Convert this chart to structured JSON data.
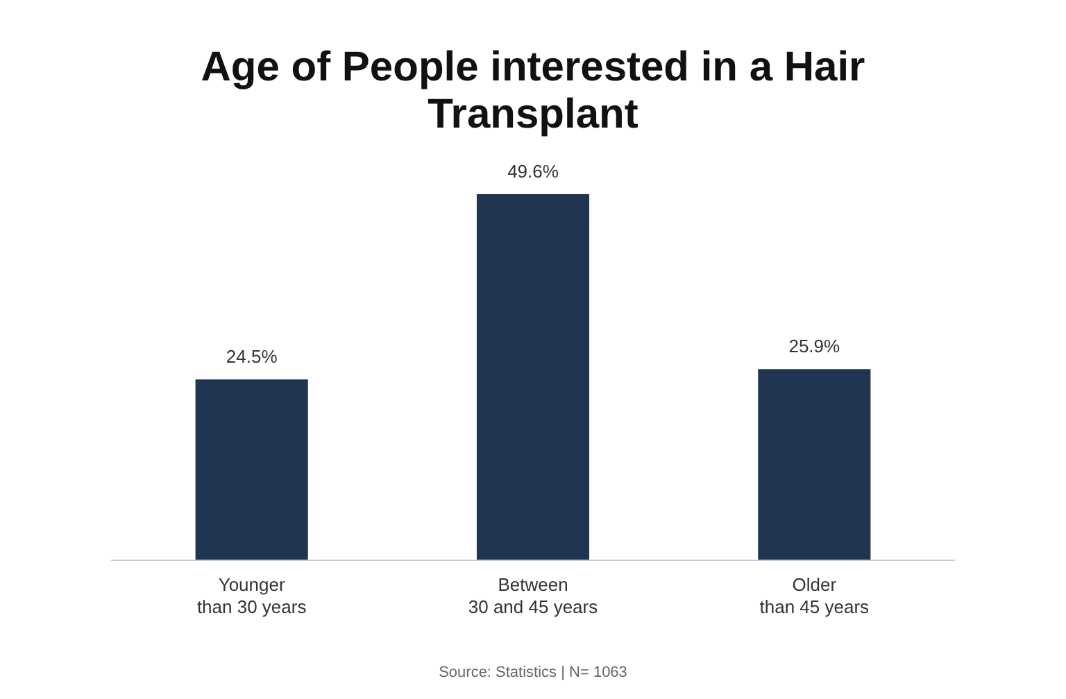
{
  "chart_data": {
    "type": "bar",
    "title": "Age of People interested in a Hair Transplant",
    "categories": [
      "Younger\nthan 30 years",
      "Between\n30 and 45 years",
      "Older\nthan 45 years"
    ],
    "values": [
      24.5,
      49.6,
      25.9
    ],
    "value_labels": [
      "24.5%",
      "49.6%",
      "25.9%"
    ],
    "color": "#1f3552",
    "annotations": [
      "Source: Statistics | N= 1063"
    ]
  }
}
